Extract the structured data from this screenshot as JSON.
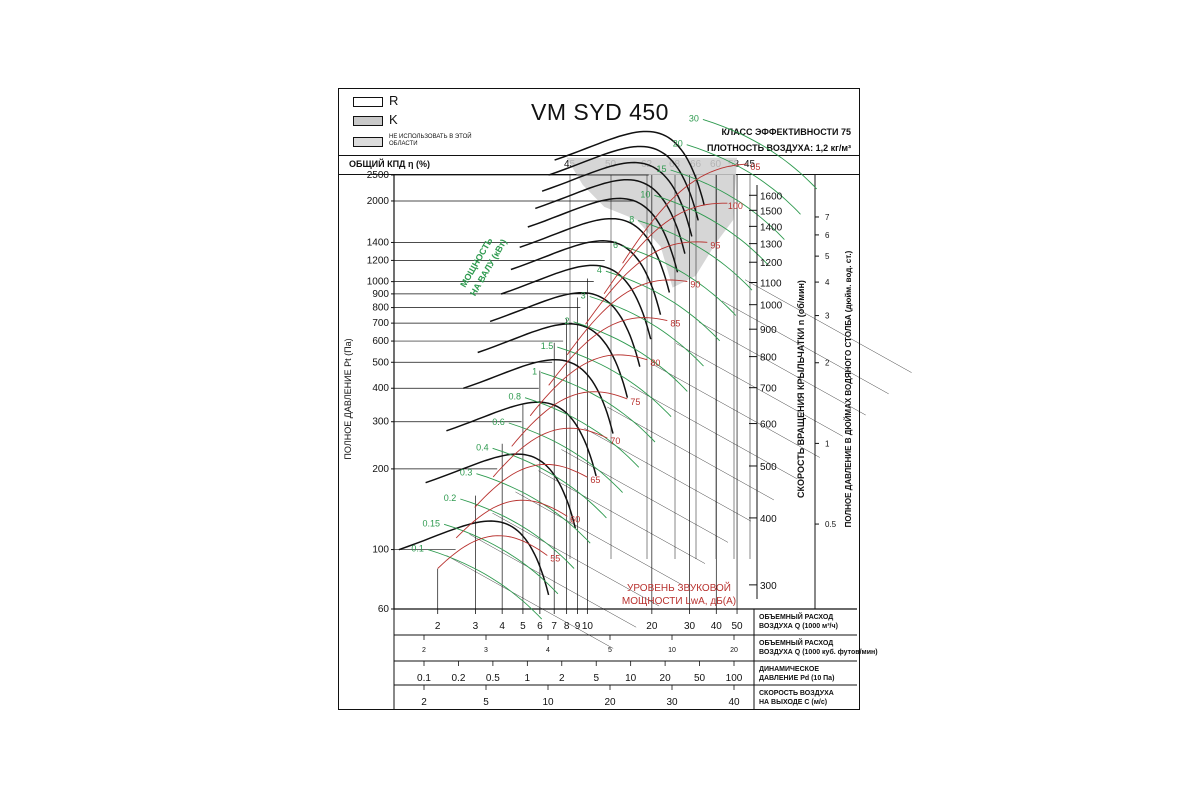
{
  "header": {
    "legend": [
      {
        "label": "R",
        "fill": "#ffffff"
      },
      {
        "label": "K",
        "fill": "#c9c9c9"
      },
      {
        "label": "НЕ ИСПОЛЬЗОВАТЬ В ЭТОЙ ОБЛАСТИ",
        "fill": "#dcdcdc"
      }
    ],
    "model": "VM SYD 450",
    "efficiency_class": "КЛАСС ЭФФЕКТИВНОСТИ 75",
    "air_density": "ПЛОТНОСТЬ ВОЗДУХА: 1,2 кг/м³"
  },
  "efficiency_row": {
    "label": "ОБЩИЙ КПД η (%)",
    "values": [
      "45",
      "50",
      "62",
      "68",
      "66",
      "60",
      "53",
      "45"
    ]
  },
  "chart_data": {
    "type": "line",
    "title": "VM SYD 450",
    "ylabel_left": "ПОЛНОЕ ДАВЛЕНИЕ Pt (Па)",
    "ylabel_rpm": "СКОРОСТЬ ВРАЩЕНИЯ КРЫЛЬЧАТКИ n (об/мин)",
    "ylabel_inch": "ПОЛНОЕ ДАВЛЕНИЕ В ДЮЙМАХ ВОДЯНОГО СТОЛБА (дюйм. вод. ст.)",
    "x_scale": "log",
    "y_scale": "log",
    "xlim": [
      1.25,
      60
    ],
    "ylim": [
      60,
      2500
    ],
    "y_ticks": [
      2500,
      2000,
      1400,
      1200,
      1000,
      900,
      800,
      700,
      600,
      500,
      400,
      300,
      200,
      100,
      60
    ],
    "rpm_ticks": [
      "1600",
      "1500",
      "1400",
      "1300",
      "1200",
      "1100",
      "1000",
      "900",
      "800",
      "700",
      "600",
      "500",
      "400",
      "300"
    ],
    "rpm_values": [
      1600,
      1500,
      1400,
      1300,
      1200,
      1100,
      1000,
      900,
      800,
      700,
      600,
      500,
      400,
      300
    ],
    "inch_ticks": [
      "7",
      "6",
      "5",
      "4",
      "3",
      "2",
      "1",
      "0.5"
    ],
    "inch_values": [
      7,
      6,
      5,
      4,
      3,
      2,
      1,
      0.5
    ],
    "power_label": "МОЩНОСТЬ НА ВАЛУ (кВт)",
    "power_labels": [
      "0.1",
      "0.15",
      "0.2",
      "0.3",
      "0.4",
      "0.6",
      "0.8",
      "1",
      "1.5",
      "2",
      "3",
      "4",
      "6",
      "8",
      "10",
      "15",
      "20",
      "30"
    ],
    "sound_label_line1": "УРОВЕНЬ ЗВУКОВОЙ",
    "sound_label_line2": "МОЩНОСТИ LwA, дБ(A)",
    "sound_labels": [
      "55",
      "60",
      "65",
      "70",
      "75",
      "80",
      "85",
      "90",
      "95",
      "100",
      "05"
    ],
    "grid": true,
    "legend_position": "top-left"
  },
  "scales": [
    {
      "label_line1": "ОБЪЕМНЫЙ РАСХОД",
      "label_line2": "ВОЗДУХА Q (1000 м³/ч)",
      "ticks": [
        "2",
        "3",
        "4",
        "5",
        "6",
        "7",
        "8",
        "9",
        "10",
        "20",
        "30",
        "40",
        "50"
      ]
    },
    {
      "label_line1": "ОБЪЕМНЫЙ РАСХОД",
      "label_line2": "ВОЗДУХА Q (1000 куб. футов/мин)",
      "ticks": [
        "2",
        "3",
        "4",
        "5",
        "10",
        "20"
      ]
    },
    {
      "label_line1": "ДИНАМИЧЕСКОЕ",
      "label_line2": "ДАВЛЕНИЕ Pd (10 Па)",
      "ticks": [
        "0.1",
        "0.2",
        "0.5",
        "1",
        "2",
        "5",
        "10",
        "20",
        "50",
        "100"
      ]
    },
    {
      "label_line1": "СКОРОСТЬ ВОЗДУХА",
      "label_line2": "НА ВЫХОДЕ C (м/с)",
      "ticks": [
        "2",
        "5",
        "10",
        "20",
        "30",
        "40"
      ]
    }
  ],
  "colors": {
    "ink": "#111111",
    "power_green": "#2e9a4f",
    "sound_red": "#b8322f",
    "restricted_gray": "#cfcfcf"
  }
}
